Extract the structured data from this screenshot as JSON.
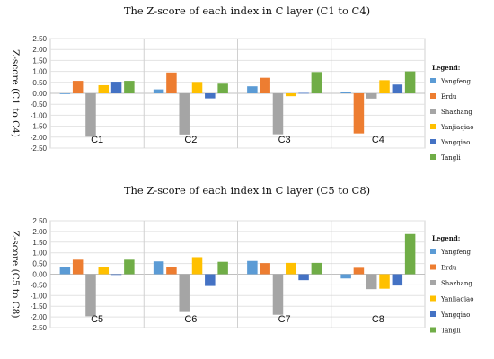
{
  "colors": {
    "Yangfeng": "#5b9bd5",
    "Erdu": "#ed7d31",
    "Shazhang": "#a5a5a5",
    "Yanjiaqiao": "#ffc000",
    "Yangqiao": "#4472c4",
    "Tangli": "#70ad47"
  },
  "chart_data": [
    {
      "type": "bar",
      "title": "The Z-score of each index in C layer (C1 to C4)",
      "ylabel": "Z-score (C1 to C4)",
      "ylim": [
        -2.5,
        2.5
      ],
      "ytick_step": 0.5,
      "yticks": [
        "2.50",
        "2.00",
        "1.50",
        "1.00",
        "0.50",
        "0.00",
        "-0.50",
        "-1.00",
        "-1.50",
        "-2.00",
        "-2.50"
      ],
      "grid": "horizontal",
      "legend_position": "right",
      "legend_title": "Legend:",
      "categories": [
        "C1",
        "C2",
        "C3",
        "C4"
      ],
      "series": [
        {
          "name": "Yangfeng",
          "values": [
            -0.03,
            0.18,
            0.32,
            0.07
          ]
        },
        {
          "name": "Erdu",
          "values": [
            0.57,
            0.95,
            0.71,
            -1.83
          ]
        },
        {
          "name": "Shazhang",
          "values": [
            -1.98,
            -1.88,
            -1.87,
            -0.24
          ]
        },
        {
          "name": "Yanjiaqiao",
          "values": [
            0.37,
            0.52,
            -0.13,
            0.6
          ]
        },
        {
          "name": "Yangqiao",
          "values": [
            0.53,
            -0.23,
            0.02,
            0.4
          ]
        },
        {
          "name": "Tangli",
          "values": [
            0.57,
            0.44,
            0.97,
            1.0
          ]
        }
      ]
    },
    {
      "type": "bar",
      "title": "The Z-score of each index in C layer (C5 to C8)",
      "ylabel": "Z-score (C5 to C8)",
      "ylim": [
        -2.5,
        2.5
      ],
      "ytick_step": 0.5,
      "yticks": [
        "2.50",
        "2.00",
        "1.50",
        "1.00",
        "0.50",
        "0.00",
        "-0.50",
        "-1.00",
        "-1.50",
        "-2.00",
        "-2.50"
      ],
      "grid": "horizontal",
      "legend_position": "right",
      "legend_title": "Legend:",
      "categories": [
        "C5",
        "C6",
        "C7",
        "C8"
      ],
      "series": [
        {
          "name": "Yangfeng",
          "values": [
            0.32,
            0.6,
            0.62,
            -0.2
          ]
        },
        {
          "name": "Erdu",
          "values": [
            0.68,
            0.32,
            0.52,
            0.3
          ]
        },
        {
          "name": "Shazhang",
          "values": [
            -1.97,
            -1.77,
            -1.9,
            -0.7
          ]
        },
        {
          "name": "Yanjiaqiao",
          "values": [
            0.32,
            0.8,
            0.53,
            -0.68
          ]
        },
        {
          "name": "Yangqiao",
          "values": [
            -0.03,
            -0.55,
            -0.28,
            -0.53
          ]
        },
        {
          "name": "Tangli",
          "values": [
            0.68,
            0.58,
            0.53,
            1.88
          ]
        }
      ]
    }
  ]
}
